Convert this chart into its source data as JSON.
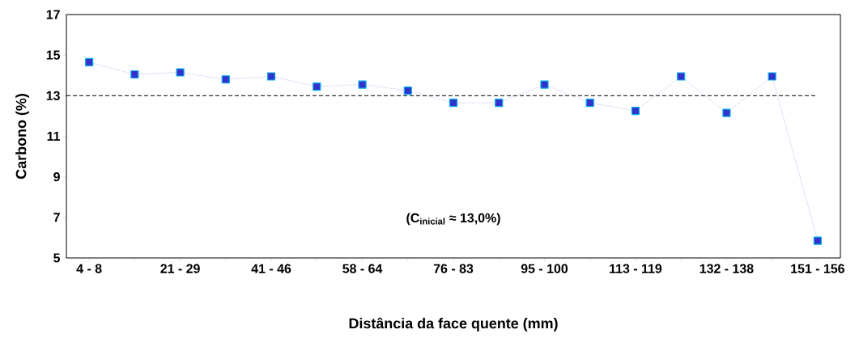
{
  "chart_data": {
    "type": "line",
    "xlabel": "Distância da face quente (mm)",
    "ylabel": "Carbono (%)",
    "categories": [
      "4 - 8",
      null,
      "21 - 29",
      null,
      "41 - 46",
      null,
      "58 - 64",
      null,
      "76 - 83",
      null,
      "95 - 100",
      null,
      "113 - 119",
      null,
      "132 - 138",
      null,
      "151 - 156"
    ],
    "series": [
      {
        "color": "#3333cc",
        "values": [
          14.65,
          14.05,
          14.15,
          13.8,
          13.95,
          13.45,
          13.55,
          13.25,
          12.65,
          12.65,
          13.55,
          12.65,
          12.25,
          13.95,
          12.15,
          13.95,
          5.85
        ]
      }
    ],
    "ylim": [
      5,
      17
    ],
    "yticks": [
      5,
      7,
      9,
      11,
      13,
      15,
      17
    ],
    "ref_lines": [
      {
        "axis": "y",
        "value": 13,
        "color": "#000000",
        "line_style": "dashed"
      }
    ],
    "annotations": [
      "(C$_{inicial}$ ≈ 13,0%)"
    ],
    "marker": "square",
    "line_style": "dotted"
  }
}
